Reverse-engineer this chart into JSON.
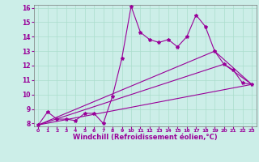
{
  "background_color": "#cceee8",
  "grid_color": "#aaddcc",
  "line_color": "#990099",
  "marker": "*",
  "markersize": 3,
  "linewidth": 0.8,
  "xlim": [
    -0.5,
    23.5
  ],
  "ylim": [
    7.8,
    16.2
  ],
  "xlabel": "Windchill (Refroidissement éolien,°C)",
  "xlabel_fontsize": 6,
  "xtick_fontsize": 4.5,
  "ytick_fontsize": 5.5,
  "series": [
    {
      "x": [
        0,
        1,
        2,
        3,
        4,
        5,
        6,
        7,
        8,
        9,
        10,
        11,
        12,
        13,
        14,
        15,
        16,
        17,
        18,
        19,
        20,
        21,
        22,
        23
      ],
      "y": [
        7.9,
        8.8,
        8.3,
        8.3,
        8.2,
        8.7,
        8.7,
        8.0,
        9.9,
        12.5,
        16.1,
        14.3,
        13.8,
        13.6,
        13.8,
        13.3,
        14.0,
        15.5,
        14.7,
        13.0,
        12.1,
        11.7,
        10.8,
        10.7
      ]
    },
    {
      "x": [
        0,
        23
      ],
      "y": [
        7.9,
        10.7
      ]
    },
    {
      "x": [
        0,
        20,
        23
      ],
      "y": [
        7.9,
        12.1,
        10.7
      ]
    },
    {
      "x": [
        0,
        19,
        23
      ],
      "y": [
        7.9,
        13.0,
        10.7
      ]
    }
  ]
}
